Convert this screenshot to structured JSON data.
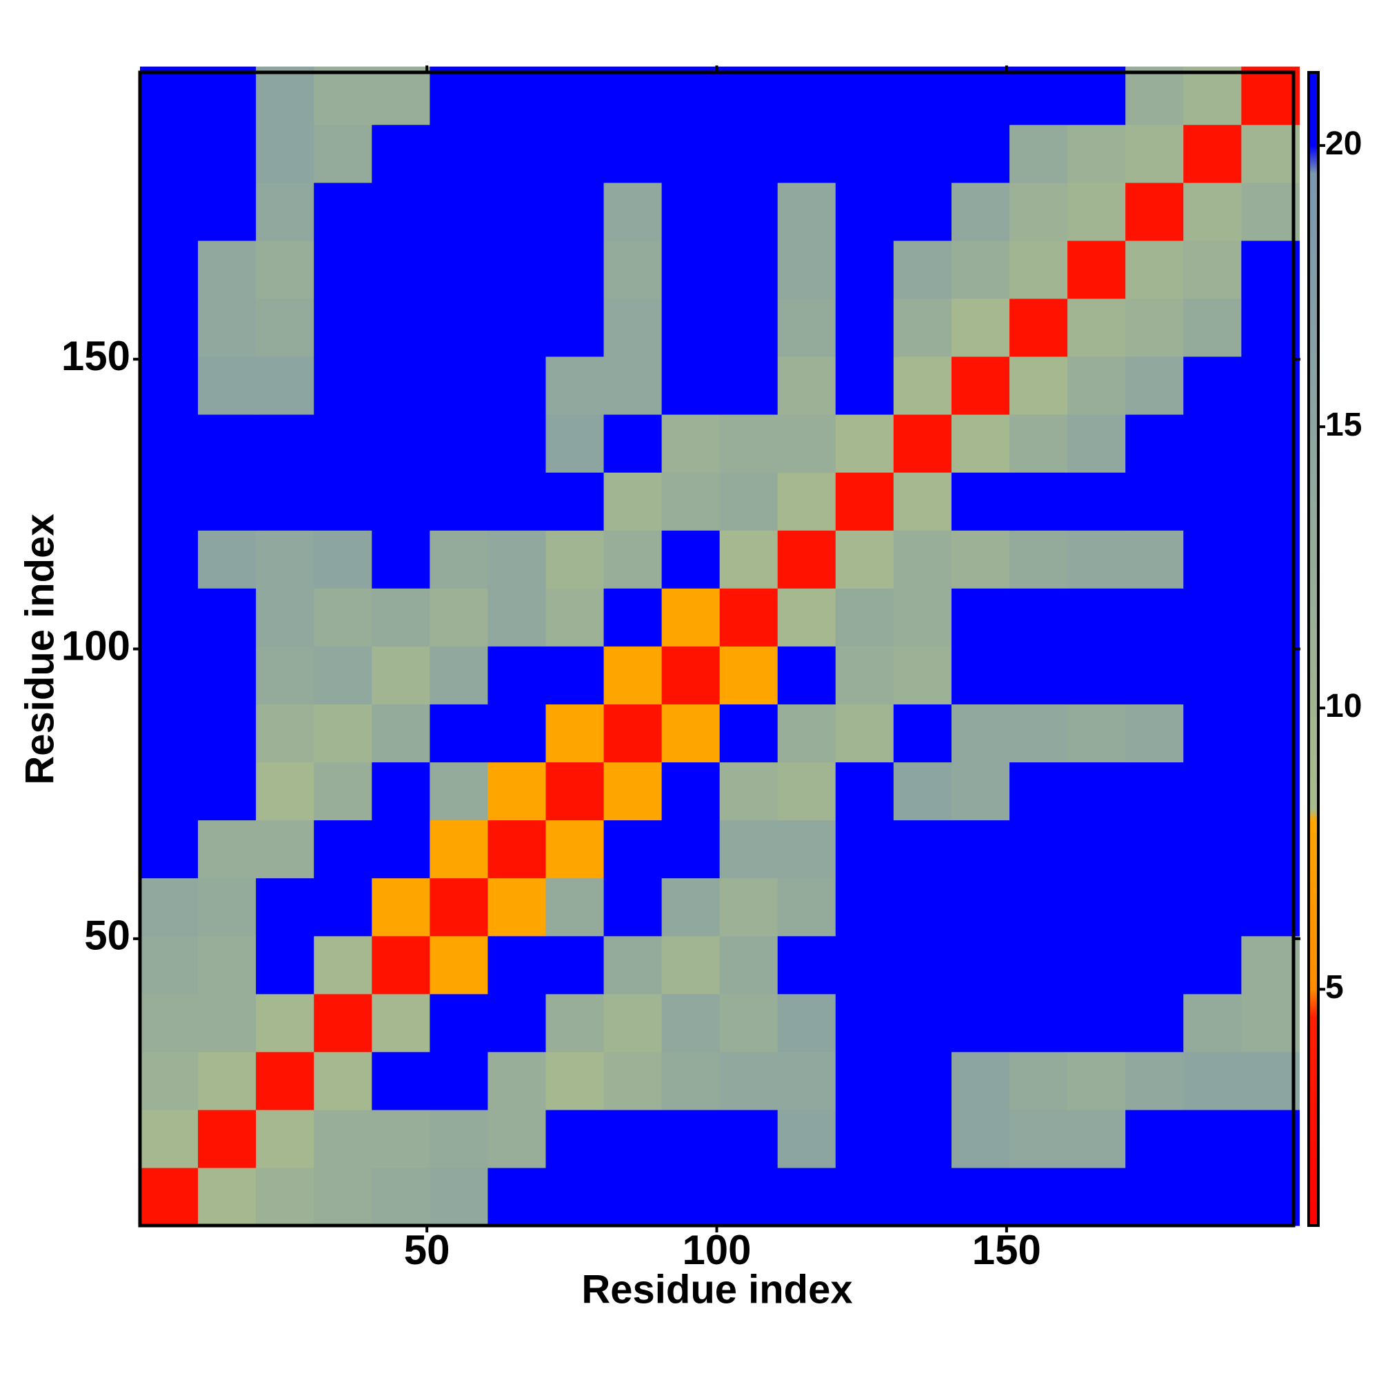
{
  "chart_data": {
    "type": "heatmap",
    "xlabel": "Residue index",
    "ylabel": "Residue index",
    "x": [
      5.5,
      15.5,
      25.5,
      35.5,
      45.5,
      55.5,
      65.5,
      75.5,
      85.5,
      95.5,
      105.5,
      115.5,
      125.5,
      135.5,
      145.5,
      155.5,
      165.5,
      175.5,
      185.5,
      195.5
    ],
    "y": [
      5.5,
      15.5,
      25.5,
      35.5,
      45.5,
      55.5,
      65.5,
      75.5,
      85.5,
      95.5,
      105.5,
      115.5,
      125.5,
      135.5,
      145.5,
      155.5,
      165.5,
      175.5,
      185.5,
      195.5
    ],
    "cell_size": 10,
    "z": [
      [
        3,
        9,
        11,
        12,
        13,
        14,
        21,
        21,
        21,
        21,
        21,
        21,
        21,
        21,
        21,
        21,
        21,
        21,
        21,
        21
      ],
      [
        9,
        3,
        9,
        12,
        12,
        13,
        12,
        21,
        21,
        21,
        21,
        15,
        21,
        21,
        15,
        14,
        14,
        21,
        21,
        21
      ],
      [
        11,
        9,
        3,
        9,
        21,
        21,
        12,
        9,
        11,
        13,
        14,
        14,
        21,
        21,
        15,
        13,
        12,
        14,
        15,
        15
      ],
      [
        12,
        12,
        9,
        3,
        9,
        21,
        21,
        12,
        10,
        14,
        12,
        15,
        21,
        21,
        21,
        21,
        21,
        21,
        13,
        12
      ],
      [
        13,
        12,
        21,
        9,
        3,
        8,
        21,
        21,
        13,
        10,
        13,
        21,
        21,
        21,
        21,
        21,
        21,
        21,
        21,
        12
      ],
      [
        14,
        13,
        21,
        21,
        8,
        3,
        8,
        13,
        21,
        14,
        11,
        13,
        21,
        21,
        21,
        21,
        21,
        21,
        21,
        21
      ],
      [
        21,
        12,
        12,
        21,
        21,
        8,
        3,
        8,
        21,
        21,
        14,
        14,
        21,
        21,
        21,
        21,
        21,
        21,
        21,
        21
      ],
      [
        21,
        21,
        9,
        12,
        21,
        13,
        8,
        3,
        8,
        21,
        11,
        10,
        21,
        15,
        14,
        21,
        21,
        21,
        21,
        21
      ],
      [
        21,
        21,
        11,
        10,
        13,
        21,
        21,
        8,
        3,
        8,
        21,
        12,
        10,
        21,
        14,
        14,
        13,
        14,
        21,
        21
      ],
      [
        21,
        21,
        13,
        14,
        10,
        14,
        21,
        21,
        8,
        3,
        8,
        21,
        12,
        11,
        21,
        21,
        21,
        21,
        21,
        21
      ],
      [
        21,
        21,
        14,
        12,
        13,
        11,
        14,
        11,
        21,
        8,
        3,
        9,
        13,
        12,
        21,
        21,
        21,
        21,
        21,
        21
      ],
      [
        21,
        15,
        14,
        15,
        21,
        13,
        14,
        10,
        12,
        21,
        9,
        3,
        9,
        12,
        11,
        13,
        14,
        14,
        21,
        21
      ],
      [
        21,
        21,
        21,
        21,
        21,
        21,
        21,
        21,
        10,
        12,
        13,
        9,
        3,
        9,
        21,
        21,
        21,
        21,
        21,
        21
      ],
      [
        21,
        21,
        21,
        21,
        21,
        21,
        21,
        15,
        21,
        11,
        12,
        12,
        9,
        3,
        9,
        12,
        14,
        21,
        21,
        21
      ],
      [
        21,
        15,
        15,
        21,
        21,
        21,
        21,
        14,
        14,
        21,
        21,
        11,
        21,
        9,
        3,
        9,
        12,
        14,
        21,
        21
      ],
      [
        21,
        14,
        13,
        21,
        21,
        21,
        21,
        21,
        14,
        21,
        21,
        13,
        21,
        12,
        9,
        3,
        10,
        11,
        13,
        21
      ],
      [
        21,
        14,
        12,
        21,
        21,
        21,
        21,
        21,
        13,
        21,
        21,
        14,
        21,
        14,
        12,
        10,
        3,
        10,
        11,
        21
      ],
      [
        21,
        21,
        14,
        21,
        21,
        21,
        21,
        21,
        14,
        21,
        21,
        14,
        21,
        21,
        14,
        11,
        10,
        3,
        10,
        12
      ],
      [
        21,
        21,
        15,
        13,
        21,
        21,
        21,
        21,
        21,
        21,
        21,
        21,
        21,
        21,
        21,
        13,
        11,
        10,
        3,
        10
      ],
      [
        21,
        21,
        15,
        12,
        12,
        21,
        21,
        21,
        21,
        21,
        21,
        21,
        21,
        21,
        21,
        21,
        21,
        12,
        10,
        3
      ]
    ],
    "xlim": [
      0.5,
      199.5
    ],
    "ylim": [
      0.5,
      199.5
    ],
    "xticks": [
      50,
      100,
      150
    ],
    "yticks": [
      50,
      100,
      150
    ],
    "zlim": [
      0.8,
      21.3
    ],
    "zticks": [
      5,
      10,
      15,
      20
    ],
    "colorscale": [
      {
        "value": 0.8,
        "color": "#ff0000"
      },
      {
        "value": 4.5,
        "color": "#ff2000"
      },
      {
        "value": 5,
        "color": "#ff8c00"
      },
      {
        "value": 8,
        "color": "#ffa500"
      },
      {
        "value": 8.2,
        "color": "#a9bb8c"
      },
      {
        "value": 12,
        "color": "#98ae98"
      },
      {
        "value": 19.5,
        "color": "#7c97ae"
      },
      {
        "value": 20,
        "color": "#0000ff"
      },
      {
        "value": 21.3,
        "color": "#0000ff"
      }
    ]
  }
}
